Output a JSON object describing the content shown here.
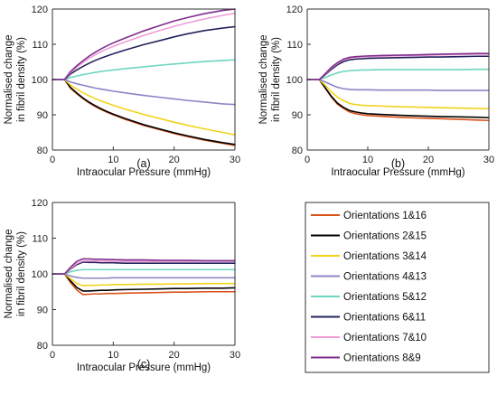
{
  "chart_data": {
    "type": "line",
    "x": [
      0,
      2,
      3,
      4,
      5,
      6,
      7,
      8,
      9,
      10,
      12,
      15,
      18,
      20,
      22,
      25,
      28,
      30
    ],
    "legend": {
      "placement": "bottom-right",
      "entries": [
        {
          "label": "Orientations 1&16",
          "color": "#d95319"
        },
        {
          "label": "Orientations 2&15",
          "color": "#000000"
        },
        {
          "label": "Orientations 3&14",
          "color": "#f2d31b"
        },
        {
          "label": "Orientations 4&13",
          "color": "#8c86c6"
        },
        {
          "label": "Orientations 5&12",
          "color": "#6fd6c0"
        },
        {
          "label": "Orientations 6&11",
          "color": "#23235e"
        },
        {
          "label": "Orientations 7&10",
          "color": "#ef9ed6"
        },
        {
          "label": "Orientations 8&9",
          "color": "#7e2f8e"
        }
      ]
    },
    "panels": [
      {
        "label": "(a)",
        "xlabel": "Intraocular Pressure (mmHg)",
        "ylabel": [
          "Normalised change",
          "in fibril density (%)"
        ],
        "xlim": [
          0,
          30
        ],
        "ylim": [
          80,
          120
        ],
        "xticks": [
          0,
          10,
          20,
          30
        ],
        "yticks": [
          80,
          90,
          100,
          110,
          120
        ],
        "series": [
          {
            "values": [
              100,
              100,
              97.5,
              96.0,
              94.6,
              93.4,
              92.4,
              91.5,
              90.7,
              90.0,
              88.7,
              87.0,
              85.6,
              84.7,
              83.9,
              82.8,
              81.9,
              81.3
            ]
          },
          {
            "values": [
              100,
              100,
              97.7,
              96.2,
              94.8,
              93.6,
              92.6,
              91.7,
              90.9,
              90.2,
              88.9,
              87.2,
              85.8,
              84.9,
              84.1,
              83.0,
              82.1,
              81.6
            ]
          },
          {
            "values": [
              100,
              100,
              98.4,
              97.3,
              96.3,
              95.4,
              94.6,
              93.9,
              93.3,
              92.7,
              91.6,
              90.1,
              88.8,
              87.9,
              87.1,
              86.0,
              85.0,
              84.3
            ]
          },
          {
            "values": [
              100,
              100,
              99.3,
              98.8,
              98.4,
              98.0,
              97.6,
              97.3,
              97.0,
              96.7,
              96.2,
              95.5,
              94.9,
              94.5,
              94.1,
              93.6,
              93.1,
              92.9
            ]
          },
          {
            "values": [
              100,
              100,
              100.6,
              101.0,
              101.4,
              101.7,
              102.0,
              102.3,
              102.5,
              102.7,
              103.1,
              103.6,
              104.1,
              104.4,
              104.7,
              105.1,
              105.4,
              105.6
            ]
          },
          {
            "values": [
              100,
              100,
              101.6,
              102.7,
              103.7,
              104.6,
              105.4,
              106.1,
              106.7,
              107.3,
              108.4,
              109.9,
              111.2,
              112.1,
              112.9,
              113.9,
              114.6,
              115.0
            ]
          },
          {
            "values": [
              100,
              100,
              102.0,
              103.5,
              104.8,
              106.0,
              107.0,
              107.9,
              108.7,
              109.4,
              110.7,
              112.5,
              114.1,
              115.1,
              116.0,
              117.2,
              118.2,
              118.8
            ]
          },
          {
            "values": [
              100,
              100,
              102.3,
              103.9,
              105.3,
              106.6,
              107.7,
              108.7,
              109.6,
              110.4,
              111.8,
              113.8,
              115.5,
              116.6,
              117.5,
              118.7,
              119.6,
              120.0
            ]
          }
        ]
      },
      {
        "label": "(b)",
        "xlabel": "Intraocular Pressure (mmHg)",
        "ylabel": [
          "Normalised change",
          "in fibril density (%)"
        ],
        "xlim": [
          0,
          30
        ],
        "ylim": [
          80,
          120
        ],
        "xticks": [
          0,
          10,
          20,
          30
        ],
        "yticks": [
          80,
          90,
          100,
          110,
          120
        ],
        "series": [
          {
            "values": [
              100,
              100,
              97.5,
              95.0,
              93.0,
              91.8,
              90.8,
              90.3,
              90.0,
              89.8,
              89.6,
              89.3,
              89.1,
              89.0,
              88.9,
              88.7,
              88.5,
              88.4
            ]
          },
          {
            "values": [
              100,
              100,
              97.6,
              95.2,
              93.3,
              92.1,
              91.2,
              90.8,
              90.5,
              90.3,
              90.1,
              89.9,
              89.7,
              89.6,
              89.5,
              89.4,
              89.3,
              89.2
            ]
          },
          {
            "values": [
              100,
              100,
              98.3,
              96.5,
              95.0,
              94.0,
              93.2,
              92.9,
              92.7,
              92.6,
              92.5,
              92.3,
              92.2,
              92.1,
              92.0,
              91.9,
              91.8,
              91.7
            ]
          },
          {
            "values": [
              100,
              100,
              99.3,
              98.5,
              97.8,
              97.4,
              97.2,
              97.1,
              97.1,
              97.1,
              97.0,
              97.0,
              97.0,
              97.0,
              96.9,
              96.9,
              96.9,
              96.9
            ]
          },
          {
            "values": [
              100,
              100,
              100.6,
              101.3,
              101.9,
              102.3,
              102.5,
              102.6,
              102.7,
              102.7,
              102.8,
              102.8,
              102.8,
              102.8,
              102.8,
              102.8,
              102.9,
              102.9
            ]
          },
          {
            "values": [
              100,
              100,
              101.4,
              102.9,
              104.2,
              105.1,
              105.6,
              105.8,
              105.9,
              106.0,
              106.1,
              106.2,
              106.3,
              106.4,
              106.4,
              106.5,
              106.6,
              106.6
            ]
          },
          {
            "values": [
              100,
              100,
              101.6,
              103.3,
              104.6,
              105.6,
              106.1,
              106.3,
              106.4,
              106.5,
              106.6,
              106.7,
              106.8,
              106.9,
              107.0,
              107.1,
              107.2,
              107.2
            ]
          },
          {
            "values": [
              100,
              100,
              101.7,
              103.5,
              104.8,
              105.8,
              106.3,
              106.5,
              106.6,
              106.7,
              106.8,
              106.9,
              107.0,
              107.1,
              107.2,
              107.3,
              107.4,
              107.4
            ]
          }
        ]
      },
      {
        "label": "(c)",
        "xlabel": "Intraocular Pressure (mmHg)",
        "ylabel": [
          "Normalised change",
          "in fibril density (%)"
        ],
        "xlim": [
          0,
          30
        ],
        "ylim": [
          80,
          120
        ],
        "xticks": [
          0,
          10,
          20,
          30
        ],
        "yticks": [
          80,
          90,
          100,
          110,
          120
        ],
        "series": [
          {
            "values": [
              100,
              100,
              97.5,
              95.5,
              94.2,
              94.3,
              94.4,
              94.4,
              94.5,
              94.5,
              94.6,
              94.7,
              94.8,
              94.9,
              94.9,
              95.0,
              95.0,
              95.0
            ]
          },
          {
            "values": [
              100,
              100,
              98.0,
              96.2,
              95.2,
              95.2,
              95.3,
              95.4,
              95.4,
              95.5,
              95.6,
              95.7,
              95.8,
              95.9,
              95.9,
              96.0,
              96.0,
              96.1
            ]
          },
          {
            "values": [
              100,
              100,
              98.6,
              97.3,
              96.7,
              96.8,
              96.8,
              96.9,
              96.9,
              97.0,
              97.0,
              97.1,
              97.1,
              97.2,
              97.2,
              97.3,
              97.3,
              97.3
            ]
          },
          {
            "values": [
              100,
              100,
              99.4,
              99.0,
              98.8,
              98.8,
              98.8,
              98.8,
              98.8,
              98.9,
              98.9,
              98.9,
              98.9,
              98.9,
              98.9,
              98.9,
              98.9,
              98.9
            ]
          },
          {
            "values": [
              100,
              100,
              100.6,
              101.0,
              101.2,
              101.2,
              101.2,
              101.2,
              101.2,
              101.2,
              101.2,
              101.2,
              101.2,
              101.2,
              101.2,
              101.2,
              101.2,
              101.2
            ]
          },
          {
            "values": [
              100,
              100,
              101.4,
              102.6,
              103.3,
              103.2,
              103.2,
              103.1,
              103.1,
              103.1,
              103.0,
              103.0,
              103.0,
              103.0,
              103.0,
              103.0,
              103.0,
              103.0
            ]
          },
          {
            "values": [
              100,
              100,
              101.6,
              102.9,
              103.6,
              103.6,
              103.6,
              103.6,
              103.5,
              103.5,
              103.5,
              103.5,
              103.5,
              103.5,
              103.5,
              103.5,
              103.5,
              103.5
            ]
          },
          {
            "values": [
              100,
              100,
              101.9,
              103.5,
              104.2,
              104.2,
              104.1,
              104.1,
              104.0,
              104.0,
              103.9,
              103.9,
              103.8,
              103.8,
              103.8,
              103.7,
              103.7,
              103.7
            ]
          }
        ]
      }
    ]
  }
}
